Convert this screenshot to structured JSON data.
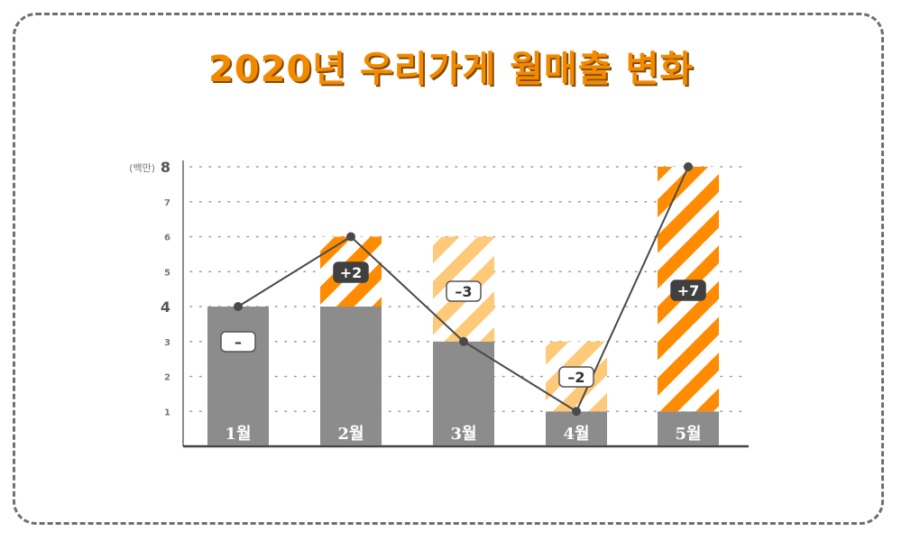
{
  "title": "2020년 우리가게 월매출 변화",
  "colors": {
    "base_bar": "#8c8c8c",
    "increase": "#ff8c00",
    "decrease": "#ffc97a",
    "line": "#4a4a4a",
    "grid": "#9a9a9a",
    "title": "#f28a00",
    "badge_dark": "#404040"
  },
  "chart_data": {
    "type": "bar",
    "unit_label": "(백만)",
    "ylim": [
      0,
      8
    ],
    "yticks": [
      "1",
      "2",
      "3",
      "4",
      "5",
      "6",
      "7",
      "8"
    ],
    "emphasized_ticks": [
      "4",
      "8"
    ],
    "categories": [
      "1월",
      "2월",
      "3월",
      "4월",
      "5월"
    ],
    "monthly_sales": [
      4,
      6,
      3,
      1,
      8
    ],
    "series": [
      {
        "values": [
          4,
          4,
          3,
          1,
          1
        ]
      },
      {
        "values": [
          0,
          2,
          3,
          2,
          7
        ]
      }
    ],
    "changes": [
      {
        "label": "–",
        "direction": "none"
      },
      {
        "label": "+2",
        "direction": "up"
      },
      {
        "label": "–3",
        "direction": "down"
      },
      {
        "label": "–2",
        "direction": "down"
      },
      {
        "label": "+7",
        "direction": "up"
      }
    ],
    "grid": "dotted-horizontal"
  }
}
